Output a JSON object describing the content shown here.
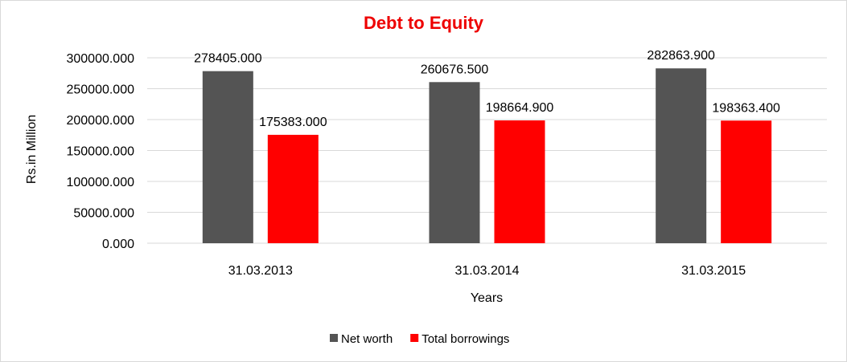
{
  "chart_data": {
    "type": "bar",
    "title": "Debt to Equity",
    "title_color": "#ee0000",
    "xlabel": "Years",
    "ylabel": "Rs.in Million",
    "categories": [
      "31.03.2013",
      "31.03.2014",
      "31.03.2015"
    ],
    "series": [
      {
        "name": "Net worth",
        "color": "#545454",
        "values": [
          278405.0,
          260676.5,
          282863.9
        ],
        "labels": [
          "278405.000",
          "260676.500",
          "282863.900"
        ]
      },
      {
        "name": "Total borrowings",
        "color": "#ff0000",
        "values": [
          175383.0,
          198664.9,
          198363.4
        ],
        "labels": [
          "175383.000",
          "198664.900",
          "198363.400"
        ]
      }
    ],
    "ylim": [
      0,
      300000
    ],
    "yticks": [
      0,
      50000,
      100000,
      150000,
      200000,
      250000,
      300000
    ],
    "ytick_labels": [
      "0.000",
      "50000.000",
      "100000.000",
      "150000.000",
      "200000.000",
      "250000.000",
      "300000.000"
    ],
    "grid": true,
    "legend_position": "bottom"
  }
}
